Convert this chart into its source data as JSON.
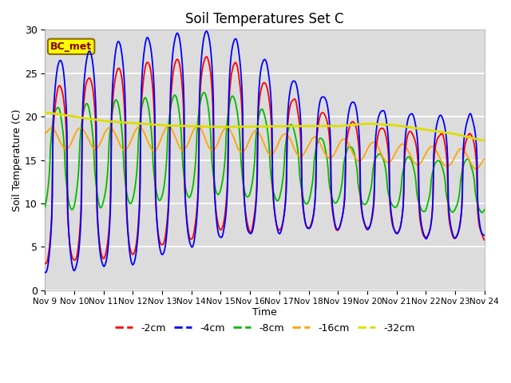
{
  "title": "Soil Temperatures Set C",
  "xlabel": "Time",
  "ylabel": "Soil Temperature (C)",
  "annotation": "BC_met",
  "annotation_color": "#8B0000",
  "annotation_bg": "#FFFF00",
  "ylim": [
    0,
    30
  ],
  "colors": {
    "-2cm": "#FF0000",
    "-4cm": "#0000FF",
    "-8cm": "#00BB00",
    "-16cm": "#FFA500",
    "-32cm": "#DDDD00"
  },
  "xtick_labels": [
    "Nov 9",
    "Nov 10",
    "Nov 11",
    "Nov 12",
    "Nov 13",
    "Nov 14",
    "Nov 15",
    "Nov 16",
    "Nov 17",
    "Nov 18",
    "Nov 19",
    "Nov 20",
    "Nov 21",
    "Nov 22",
    "Nov 23",
    "Nov 24"
  ],
  "ytick_labels": [
    0,
    5,
    10,
    15,
    20,
    25,
    30
  ],
  "bg_color": "#DCDCDC",
  "legend_labels": [
    "-2cm",
    "-4cm",
    "-8cm",
    "-16cm",
    "-32cm"
  ]
}
